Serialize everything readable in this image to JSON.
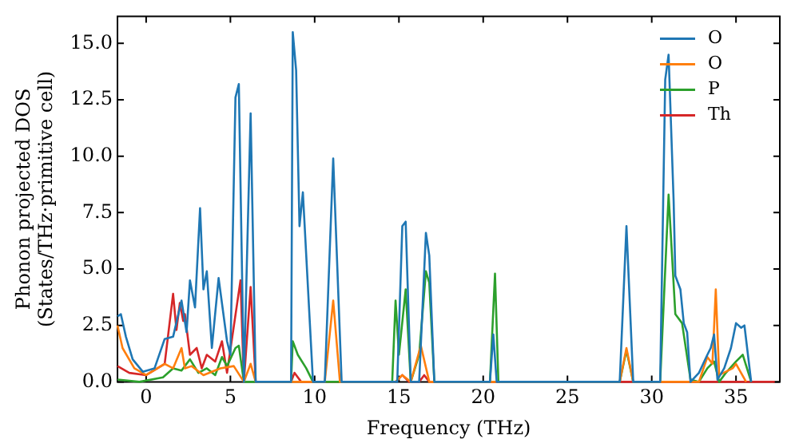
{
  "chart_data": {
    "type": "line",
    "xlabel": "Frequency (THz)",
    "ylabel": "Phonon projected DOS\n(States/THz·primitive cell)",
    "xlim": [
      -1.7,
      37.6
    ],
    "xticks": [
      0,
      5,
      10,
      15,
      20,
      25,
      30,
      35
    ],
    "ylim": [
      0,
      16.2
    ],
    "yticks": [
      {
        "value": 0,
        "label": "0.0"
      },
      {
        "value": 2.5,
        "label": "2.5"
      },
      {
        "value": 5,
        "label": "5.0"
      },
      {
        "value": 7.5,
        "label": "7.5"
      },
      {
        "value": 10,
        "label": "10.0"
      },
      {
        "value": 12.5,
        "label": "12.5"
      },
      {
        "value": 15,
        "label": "15.0"
      }
    ],
    "grid": false,
    "legend": "top right",
    "marker": "none",
    "line_style": "solid",
    "series": [
      {
        "name": "O",
        "color": "#1f77b4",
        "x": [
          -1.7,
          -1.5,
          -1.2,
          -0.8,
          -0.2,
          0.5,
          1.1,
          1.6,
          2.1,
          2.4,
          2.6,
          2.9,
          3.2,
          3.4,
          3.6,
          3.9,
          4.3,
          4.8,
          5.0,
          5.3,
          5.5,
          5.8,
          6.2,
          6.5,
          8.6,
          8.7,
          8.9,
          9.1,
          9.3,
          9.9,
          10.6,
          11.1,
          11.6,
          14.9,
          15.2,
          15.4,
          15.7,
          16.2,
          16.6,
          16.8,
          17.1,
          20.4,
          20.6,
          20.8,
          28.1,
          28.5,
          28.9,
          30.5,
          30.8,
          31.0,
          31.3,
          31.4,
          31.7,
          31.9,
          32.1,
          32.3,
          32.8,
          33.3,
          33.5,
          33.7,
          33.9,
          34.3,
          34.7,
          35.0,
          35.3,
          35.5,
          35.9
        ],
        "values": [
          2.9,
          3.0,
          2.0,
          1.0,
          0.45,
          0.6,
          1.9,
          2.0,
          3.6,
          2.2,
          4.5,
          3.3,
          7.7,
          4.1,
          4.9,
          1.5,
          4.6,
          1.8,
          1.2,
          12.6,
          13.2,
          0,
          11.9,
          0,
          0,
          15.5,
          13.8,
          6.9,
          8.4,
          0,
          0,
          9.9,
          0,
          0,
          6.9,
          7.1,
          0,
          0,
          6.6,
          5.6,
          0,
          0,
          2.1,
          0,
          0,
          6.9,
          0,
          0,
          13.4,
          14.5,
          8.0,
          4.7,
          4.1,
          2.6,
          2.2,
          0,
          0.4,
          1.2,
          1.5,
          2.1,
          0.1,
          0.6,
          1.5,
          2.6,
          2.4,
          2.5,
          0
        ]
      },
      {
        "name": "O",
        "color": "#ff7f0e",
        "x": [
          -1.7,
          -1.4,
          -0.7,
          0,
          1.1,
          1.6,
          2.1,
          2.3,
          2.7,
          3.4,
          4.4,
          5.2,
          5.8,
          6.2,
          6.5,
          10.6,
          11.1,
          11.5,
          14.8,
          15.2,
          15.7,
          16.3,
          16.8,
          28.1,
          28.5,
          28.9,
          32.8,
          33.3,
          33.6,
          33.8,
          34.0,
          34.8,
          35.0,
          35.6
        ],
        "values": [
          2.5,
          1.5,
          0.6,
          0.3,
          0.8,
          0.6,
          1.5,
          0.6,
          0.7,
          0.3,
          0.6,
          0.7,
          0,
          0.8,
          0,
          0,
          3.6,
          0,
          0,
          0.3,
          0,
          1.6,
          0,
          0,
          1.5,
          0,
          0,
          1.1,
          0.8,
          4.1,
          0.3,
          0.6,
          0.8,
          0
        ]
      },
      {
        "name": "P",
        "color": "#2ca02c",
        "x": [
          -1.7,
          -0.4,
          1.0,
          1.6,
          2.1,
          2.6,
          3.1,
          3.6,
          4.1,
          4.5,
          4.8,
          5.3,
          5.5,
          5.8,
          8.6,
          8.7,
          9.0,
          9.5,
          9.9,
          14.6,
          14.8,
          15.0,
          15.4,
          15.7,
          16.2,
          16.6,
          16.8,
          17.1,
          20.4,
          20.7,
          20.9,
          28.1,
          28.5,
          28.9,
          30.5,
          31.0,
          31.4,
          31.8,
          32.3,
          32.8,
          33.3,
          33.7,
          34.0,
          34.4,
          35.0,
          35.4,
          35.9
        ],
        "values": [
          0.1,
          0,
          0.2,
          0.6,
          0.5,
          1.0,
          0.4,
          0.6,
          0.3,
          1.1,
          0.7,
          1.5,
          1.6,
          0,
          0,
          1.8,
          1.2,
          0.6,
          0,
          0,
          3.6,
          1.2,
          4.1,
          0,
          1.2,
          4.9,
          4.4,
          0,
          0,
          4.8,
          0,
          0,
          1.4,
          0,
          0,
          8.3,
          3.0,
          2.6,
          0.1,
          0,
          0.6,
          0.9,
          0,
          0.4,
          0.9,
          1.2,
          0
        ]
      },
      {
        "name": "Th",
        "color": "#d62728",
        "x": [
          -1.7,
          -1.0,
          0,
          1.1,
          1.6,
          1.8,
          2.0,
          2.2,
          2.3,
          2.6,
          3.0,
          3.3,
          3.6,
          4.1,
          4.5,
          4.8,
          5.6,
          5.8,
          6.2,
          6.5,
          8.6,
          8.8,
          9.2,
          14.8,
          15.2,
          15.6,
          16.2,
          16.5,
          16.8,
          37.3
        ],
        "values": [
          0.7,
          0.4,
          0.3,
          0.8,
          3.9,
          2.3,
          3.5,
          2.7,
          3.0,
          1.2,
          1.5,
          0.6,
          1.2,
          0.9,
          1.8,
          0.4,
          4.5,
          0,
          4.2,
          0,
          0,
          0.4,
          0,
          0,
          0.3,
          0,
          0,
          0.3,
          0,
          0
        ]
      }
    ]
  }
}
